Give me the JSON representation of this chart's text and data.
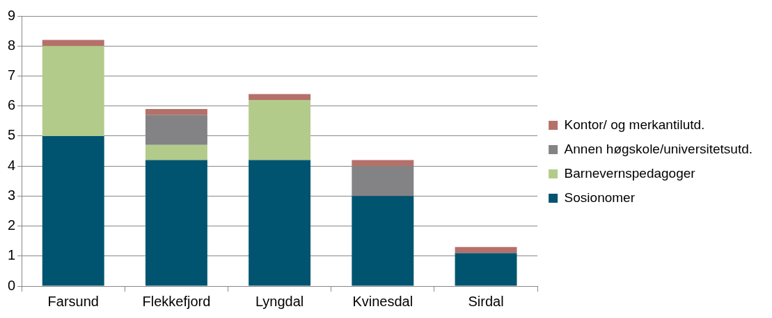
{
  "chart_data": {
    "type": "bar",
    "stacked": true,
    "categories": [
      "Farsund",
      "Flekkefjord",
      "Lyngdal",
      "Kvinesdal",
      "Sirdal"
    ],
    "series": [
      {
        "name": "Sosionomer",
        "color": "#00546f",
        "values": [
          5,
          4.2,
          4.2,
          3,
          1.1
        ]
      },
      {
        "name": "Barnevernspedagoger",
        "color": "#b3cb8a",
        "values": [
          3,
          0.5,
          2,
          0,
          0
        ]
      },
      {
        "name": "Annen høgskole/universitetsutd.",
        "color": "#838386",
        "values": [
          0,
          1,
          0,
          1,
          0
        ]
      },
      {
        "name": "Kontor/ og merkantilutd.",
        "color": "#b5706a",
        "values": [
          0.2,
          0.2,
          0.2,
          0.2,
          0.2
        ]
      }
    ],
    "ylim": [
      0,
      9
    ],
    "yticks": [
      0,
      1,
      2,
      3,
      4,
      5,
      6,
      7,
      8,
      9
    ],
    "grid": "y",
    "legend": "right"
  }
}
